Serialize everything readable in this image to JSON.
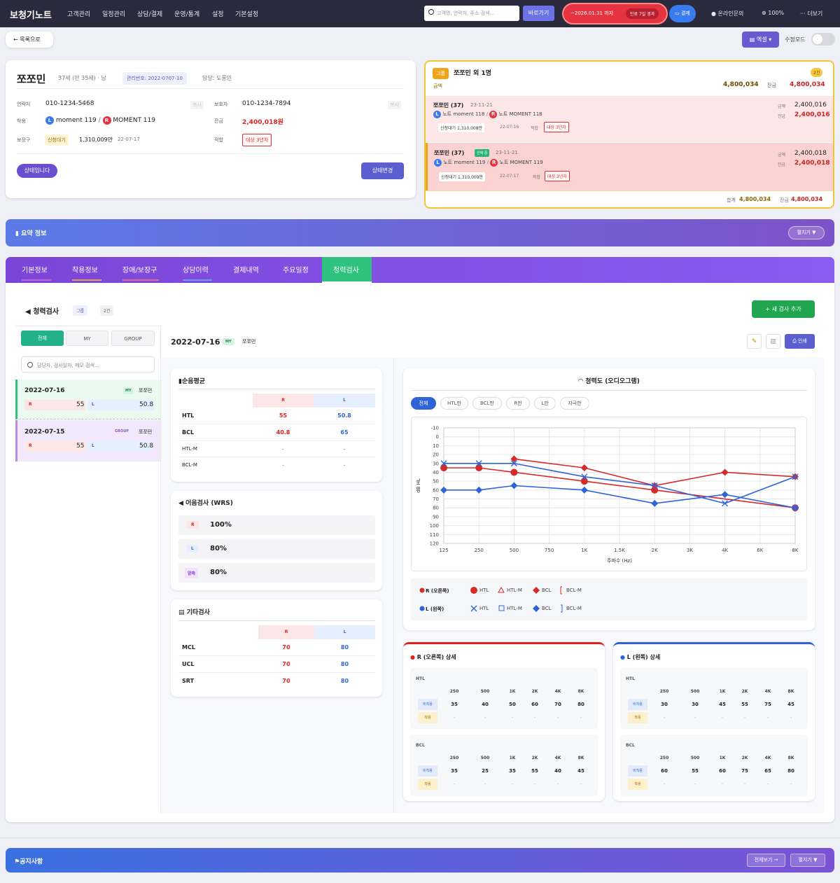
{
  "header": {
    "brand": "보청기노트",
    "menu": [
      "고객관리",
      "일정관리",
      "상담/결제",
      "운영/통계",
      "설정",
      "기본설정"
    ],
    "search_placeholder": "고객명, 연락처, 주소 검색...",
    "go": "바로가기",
    "expire": "~2026.01.31 까지",
    "expire_badge": "만료 7일 경과",
    "pay": "결제",
    "inquiry": "온라인문의",
    "zoom": "100%",
    "more": "더보기"
  },
  "nav": {
    "back": "← 목록으로",
    "excel": "엑셀",
    "edit_mode": "수정모드"
  },
  "customer": {
    "name": "쪼쪼민",
    "age": "37세 (만 35세) · 남",
    "mgmt": "관리번호: 2022-0707-10",
    "owner": "담당: 도롱민",
    "contact_label": "연락처",
    "contact": "010-1234-5468",
    "copy": "복사",
    "guardian_label": "보호자",
    "guardian": "010-1234-7894",
    "wear_label": "착용",
    "wear_l": "moment 119",
    "wear_r": "MOMENT 119",
    "balance_label": "잔금",
    "balance": "2,400,018원",
    "subsidy_label": "보장구",
    "subsidy_status": "신청대기",
    "subsidy_amount": "1,310,009만",
    "subsidy_date": "22-07-17",
    "eligible_label": "적합",
    "eligible": "대상 3년차",
    "status_btn": "상태입니다",
    "change_btn": "상태변경"
  },
  "group": {
    "badge": "그룹",
    "title": "쪼쪼민 외 1명",
    "count": "2건",
    "amount_label": "금액",
    "amount": "4,800,034",
    "balance_label": "잔금",
    "balance": "4,800,034",
    "items": [
      {
        "name": "쪼쪼민 (37)",
        "date": "23-11-21",
        "selected": "",
        "l": "노트 moment 118",
        "r": "노트 MOMENT 118",
        "sub": "신청대기 1,310,008만",
        "sub_date": "22-07-16",
        "elig_label": "적합",
        "elig": "대상 3년차",
        "amount_label": "금액",
        "amount": "2,400,016",
        "bal_label": "잔금",
        "bal": "2,400,016"
      },
      {
        "name": "쪼쪼민 (37)",
        "date": "23-11-21",
        "selected": "선택 중",
        "l": "노트 moment 119",
        "r": "노트 MOMENT 119",
        "sub": "신청대기 1,310,009만",
        "sub_date": "22-07-17",
        "elig_label": "적합",
        "elig": "대상 3년차",
        "amount_label": "금액",
        "amount": "2,400,018",
        "bal_label": "잔금",
        "bal": "2,400,018"
      }
    ],
    "total_label": "합계",
    "total": "4,800,034",
    "total_bal_label": "잔금",
    "total_bal": "4,800,034"
  },
  "summary": {
    "title": "요약 정보",
    "expand": "펼치기 ▼"
  },
  "tabs": [
    "기본정보",
    "착용정보",
    "장애/보장구",
    "상담이력",
    "결제내역",
    "주요일정",
    "청력검사"
  ],
  "hearing": {
    "title": "청력검사",
    "group_tag": "그룹",
    "count": "2건",
    "add": "+ 새 검사 추가",
    "filters": [
      "전체",
      "MY",
      "GROUP"
    ],
    "search_placeholder": "담당자, 검사일자, 메모 검색...",
    "list": [
      {
        "date": "2022-07-16",
        "type": "MY",
        "who": "쪼쪼민",
        "r": "R",
        "rv": "55",
        "l": "L",
        "lv": "50.8"
      },
      {
        "date": "2022-07-15",
        "type": "GROUP",
        "who": "쪼쪼민",
        "r": "R",
        "rv": "55",
        "l": "L",
        "lv": "50.8"
      }
    ],
    "detail_date": "2022-07-16",
    "detail_type": "MY",
    "detail_who": "쪼쪼민",
    "print": "인쇄",
    "pta": {
      "title": "순음평균",
      "r": "R",
      "l": "L",
      "rows": [
        [
          "HTL",
          "55",
          "50.8"
        ],
        [
          "BCL",
          "40.8",
          "65"
        ],
        [
          "HTL-M",
          "-",
          "-"
        ],
        [
          "BCL-M",
          "-",
          "-"
        ]
      ]
    },
    "wrs": {
      "title": "어음검사 (WRS)",
      "rows": [
        [
          "R",
          "100%"
        ],
        [
          "L",
          "80%"
        ],
        [
          "양측",
          "80%"
        ]
      ]
    },
    "other": {
      "title": "기타검사",
      "r": "R",
      "l": "L",
      "rows": [
        [
          "MCL",
          "70",
          "80"
        ],
        [
          "UCL",
          "70",
          "80"
        ],
        [
          "SRT",
          "70",
          "80"
        ]
      ]
    }
  },
  "chart_data": {
    "type": "line",
    "title": "청력도 (오디오그램)",
    "filters": [
      "전체",
      "HTL만",
      "BCL만",
      "R만",
      "L만",
      "자극만"
    ],
    "x": [
      "125",
      "250",
      "500",
      "750",
      "1K",
      "1.5K",
      "2K",
      "3K",
      "4K",
      "6K",
      "8K"
    ],
    "xlabel": "주파수 (Hz)",
    "ylabel": "dB HL",
    "ylim": [
      -10,
      120
    ],
    "y_reversed": true,
    "yticks": [
      "-10",
      "0",
      "10",
      "20",
      "30",
      "40",
      "50",
      "60",
      "70",
      "80",
      "90",
      "100",
      "110",
      "120"
    ],
    "series": [
      {
        "name": "R HTL",
        "color": "#d62b2b",
        "marker": "circle",
        "points": [
          [
            "125",
            35
          ],
          [
            "250",
            35
          ],
          [
            "500",
            40
          ],
          [
            "1K",
            50
          ],
          [
            "2K",
            60
          ],
          [
            "8K",
            80
          ]
        ]
      },
      {
        "name": "R BCL",
        "color": "#d62b2b",
        "marker": "diamond",
        "points": [
          [
            "500",
            25
          ],
          [
            "1K",
            35
          ],
          [
            "2K",
            55
          ],
          [
            "4K",
            40
          ],
          [
            "8K",
            45
          ]
        ]
      },
      {
        "name": "L HTL",
        "color": "#2f64d8",
        "marker": "x",
        "points": [
          [
            "125",
            30
          ],
          [
            "250",
            30
          ],
          [
            "500",
            30
          ],
          [
            "1K",
            45
          ],
          [
            "2K",
            55
          ],
          [
            "4K",
            75
          ],
          [
            "8K",
            45
          ]
        ]
      },
      {
        "name": "L BCL",
        "color": "#2f64d8",
        "marker": "diamond",
        "points": [
          [
            "125",
            60
          ],
          [
            "250",
            60
          ],
          [
            "500",
            55
          ],
          [
            "1K",
            60
          ],
          [
            "2K",
            75
          ],
          [
            "4K",
            65
          ],
          [
            "8K",
            80
          ]
        ]
      }
    ],
    "legend": {
      "r_label": "R (오른쪽)",
      "l_label": "L (왼쪽)",
      "items": [
        "HTL",
        "HTL-M",
        "BCL",
        "BCL-M"
      ]
    }
  },
  "detail_tables": {
    "freqs": [
      "250",
      "500",
      "1K",
      "2K",
      "4K",
      "8K"
    ],
    "unaided": "비착용",
    "aided": "착용",
    "r": {
      "title": "R (오른쪽) 상세",
      "htl": [
        "35",
        "40",
        "50",
        "60",
        "70",
        "80"
      ],
      "bcl": [
        "35",
        "25",
        "35",
        "55",
        "40",
        "45"
      ]
    },
    "l": {
      "title": "L (왼쪽) 상세",
      "htl": [
        "30",
        "30",
        "45",
        "55",
        "75",
        "45"
      ],
      "bcl": [
        "60",
        "55",
        "60",
        "75",
        "65",
        "80"
      ]
    },
    "htl_label": "HTL",
    "bcl_label": "BCL",
    "dash": "-"
  },
  "notice": {
    "title": "공지사항",
    "all": "전체보기 →",
    "expand": "펼치기 ▼"
  }
}
